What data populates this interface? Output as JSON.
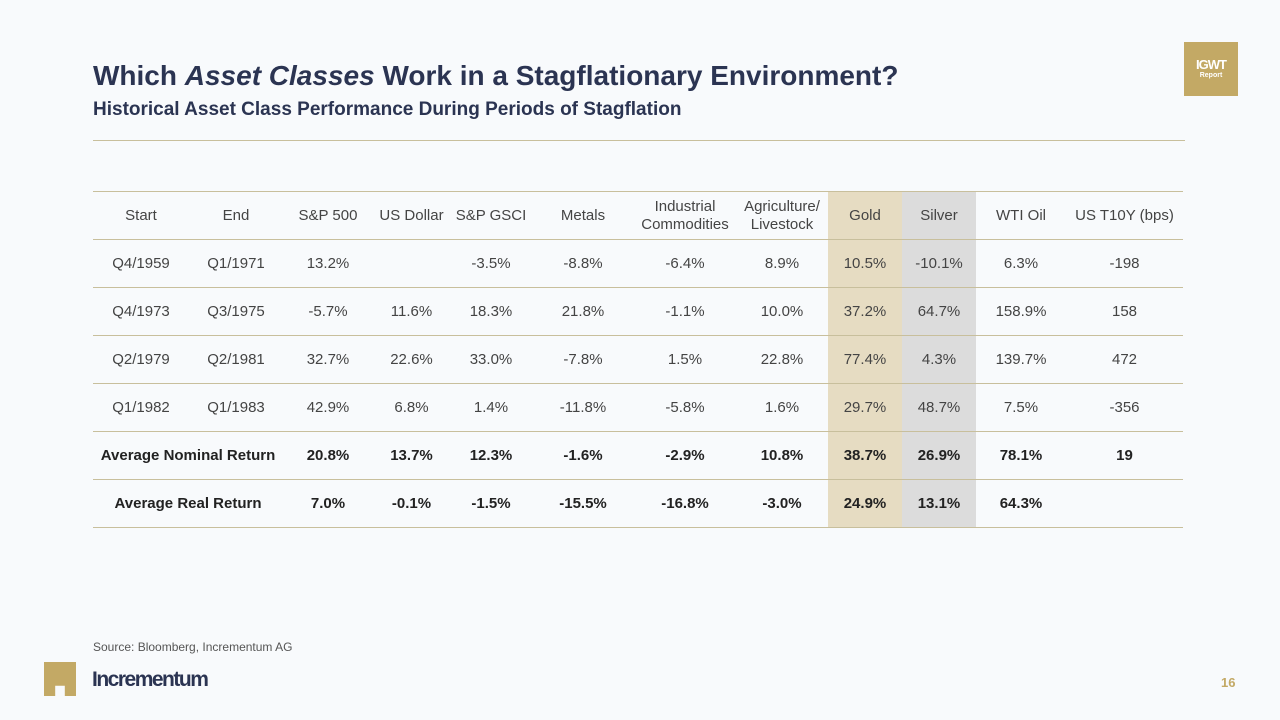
{
  "title_pre": "Which ",
  "title_em": "Asset Classes",
  "title_post": " Work in a Stagflationary Environment?",
  "subtitle": "Historical Asset Class Performance During Periods of Stagflation",
  "badge": {
    "line1": "IGWT",
    "line2": "Report"
  },
  "table": {
    "headers": [
      "Start",
      "End",
      "S&P 500",
      "US Dollar",
      "S&P GSCI",
      "Metals",
      "Industrial Commodities",
      "Agriculture/ Livestock",
      "Gold",
      "Silver",
      "WTI Oil",
      "US T10Y (bps)"
    ],
    "rows": [
      [
        "Q4/1959",
        "Q1/1971",
        "13.2%",
        "",
        "-3.5%",
        "-8.8%",
        "-6.4%",
        "8.9%",
        "10.5%",
        "-10.1%",
        "6.3%",
        "-198"
      ],
      [
        "Q4/1973",
        "Q3/1975",
        "-5.7%",
        "11.6%",
        "18.3%",
        "21.8%",
        "-1.1%",
        "10.0%",
        "37.2%",
        "64.7%",
        "158.9%",
        "158"
      ],
      [
        "Q2/1979",
        "Q2/1981",
        "32.7%",
        "22.6%",
        "33.0%",
        "-7.8%",
        "1.5%",
        "22.8%",
        "77.4%",
        "4.3%",
        "139.7%",
        "472"
      ],
      [
        "Q1/1982",
        "Q1/1983",
        "42.9%",
        "6.8%",
        "1.4%",
        "-11.8%",
        "-5.8%",
        "1.6%",
        "29.7%",
        "48.7%",
        "7.5%",
        "-356"
      ]
    ],
    "summary": [
      {
        "label": "Average Nominal Return",
        "values": [
          "20.8%",
          "13.7%",
          "12.3%",
          "-1.6%",
          "-2.9%",
          "10.8%",
          "38.7%",
          "26.9%",
          "78.1%",
          "19"
        ]
      },
      {
        "label": "Average Real Return",
        "values": [
          "7.0%",
          "-0.1%",
          "-1.5%",
          "-15.5%",
          "-16.8%",
          "-3.0%",
          "24.9%",
          "13.1%",
          "64.3%",
          ""
        ]
      }
    ]
  },
  "source": "Source: Bloomberg, Incrementum AG",
  "brand": "Incrementum",
  "page_number": "16"
}
